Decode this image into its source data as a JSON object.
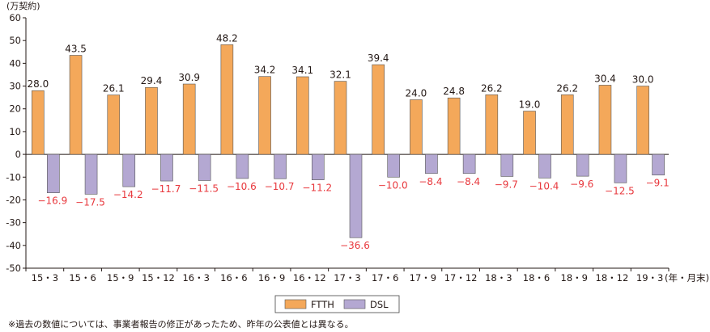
{
  "chart_data": {
    "type": "bar",
    "ylabel": "(万契約)",
    "x_unit_label": "(年・月末)",
    "ylim": [
      -50,
      60
    ],
    "yticks": [
      60,
      50,
      40,
      30,
      20,
      10,
      0,
      -10,
      -20,
      -30,
      -40,
      -50
    ],
    "categories": [
      "15・3",
      "15・6",
      "15・9",
      "15・12",
      "16・3",
      "16・6",
      "16・9",
      "16・12",
      "17・3",
      "17・6",
      "17・9",
      "17・12",
      "18・3",
      "18・6",
      "18・9",
      "18・12",
      "19・3"
    ],
    "series": [
      {
        "name": "FTTH",
        "color": "#f4a85a",
        "values": [
          28.0,
          43.5,
          26.1,
          29.4,
          30.9,
          48.2,
          34.2,
          34.1,
          32.1,
          39.4,
          24.0,
          24.8,
          26.2,
          19.0,
          26.2,
          30.4,
          30.0
        ],
        "labels": [
          "28.0",
          "43.5",
          "26.1",
          "29.4",
          "30.9",
          "48.2",
          "34.2",
          "34.1",
          "32.1",
          "39.4",
          "24.0",
          "24.8",
          "26.2",
          "19.0",
          "26.2",
          "30.4",
          "30.0"
        ]
      },
      {
        "name": "DSL",
        "color": "#b4a8d2",
        "values": [
          -16.9,
          -17.5,
          -14.2,
          -11.7,
          -11.5,
          -10.6,
          -10.7,
          -11.2,
          -36.6,
          -10.0,
          -8.4,
          -8.4,
          -9.7,
          -10.4,
          -9.6,
          -12.5,
          -9.1
        ],
        "labels": [
          "−16.9",
          "−17.5",
          "−14.2",
          "−11.7",
          "−11.5",
          "−10.6",
          "−10.7",
          "−11.2",
          "−36.6",
          "−10.0",
          "−8.4",
          "−8.4",
          "−9.7",
          "−10.4",
          "−9.6",
          "−12.5",
          "−9.1"
        ]
      }
    ],
    "colors": {
      "axis": "#231815",
      "negative_label": "#e8383d",
      "bar_stroke": "#555555"
    }
  },
  "note": "※過去の数値については、事業者報告の修正があったため、昨年の公表値とは異なる。"
}
